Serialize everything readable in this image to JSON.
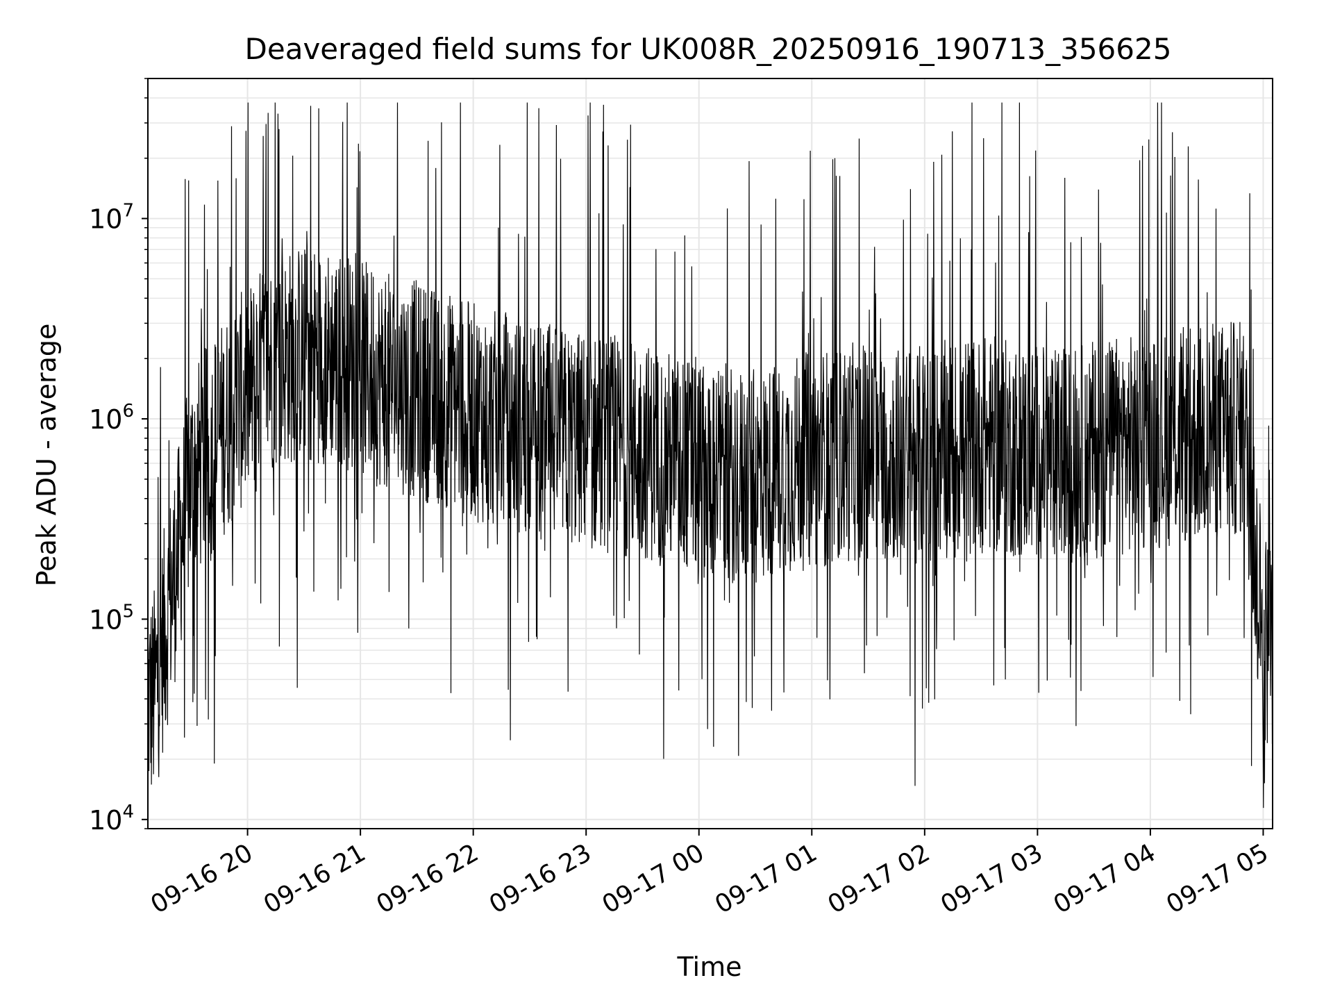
{
  "chart_data": {
    "type": "line",
    "title": "Deaveraged field sums for UK008R_20250916_190713_356625",
    "xlabel": "Time",
    "ylabel": "Peak ADU - average",
    "yscale": "log",
    "ylim": [
      9000,
      50000000
    ],
    "xlim": [
      "2025-09-16 19:07",
      "2025-09-17 05:05"
    ],
    "x_ticks": [
      "09-16 20",
      "09-16 21",
      "09-16 22",
      "09-16 23",
      "09-17 00",
      "09-17 01",
      "09-17 02",
      "09-17 03",
      "09-17 04",
      "09-17 05"
    ],
    "y_ticks": [
      {
        "value": 10000,
        "mantissa": "10",
        "exponent": "4"
      },
      {
        "value": 100000,
        "mantissa": "10",
        "exponent": "5"
      },
      {
        "value": 1000000,
        "mantissa": "10",
        "exponent": "6"
      },
      {
        "value": 10000000,
        "mantissa": "10",
        "exponent": "7"
      }
    ],
    "grid": true,
    "line_color": "#000000",
    "grid_color": "#e6e6e6",
    "series": [
      {
        "x": [
          "2025-09-16 19:10",
          "2025-09-16 19:30",
          "2025-09-16 19:50",
          "2025-09-16 20:10",
          "2025-09-16 20:30",
          "2025-09-16 20:50",
          "2025-09-16 21:10",
          "2025-09-16 21:30",
          "2025-09-16 21:50",
          "2025-09-16 22:10",
          "2025-09-16 22:30",
          "2025-09-16 22:50",
          "2025-09-16 23:10",
          "2025-09-16 23:30",
          "2025-09-16 23:50",
          "2025-09-17 00:10",
          "2025-09-17 00:30",
          "2025-09-17 00:50",
          "2025-09-17 01:10",
          "2025-09-17 01:30",
          "2025-09-17 01:50",
          "2025-09-17 02:10",
          "2025-09-17 02:30",
          "2025-09-17 02:50",
          "2025-09-17 03:10",
          "2025-09-17 03:30",
          "2025-09-17 03:50",
          "2025-09-17 04:10",
          "2025-09-17 04:30",
          "2025-09-17 04:50",
          "2025-09-17 05:00"
        ],
        "values": [
          40000,
          500000,
          1000000,
          1800000,
          2200000,
          2000000,
          1600000,
          1400000,
          1200000,
          1000000,
          900000,
          800000,
          750000,
          700000,
          600000,
          550000,
          500000,
          600000,
          650000,
          700000,
          650000,
          700000,
          750000,
          700000,
          650000,
          700000,
          750000,
          800000,
          850000,
          900000,
          80000
        ]
      }
    ]
  }
}
